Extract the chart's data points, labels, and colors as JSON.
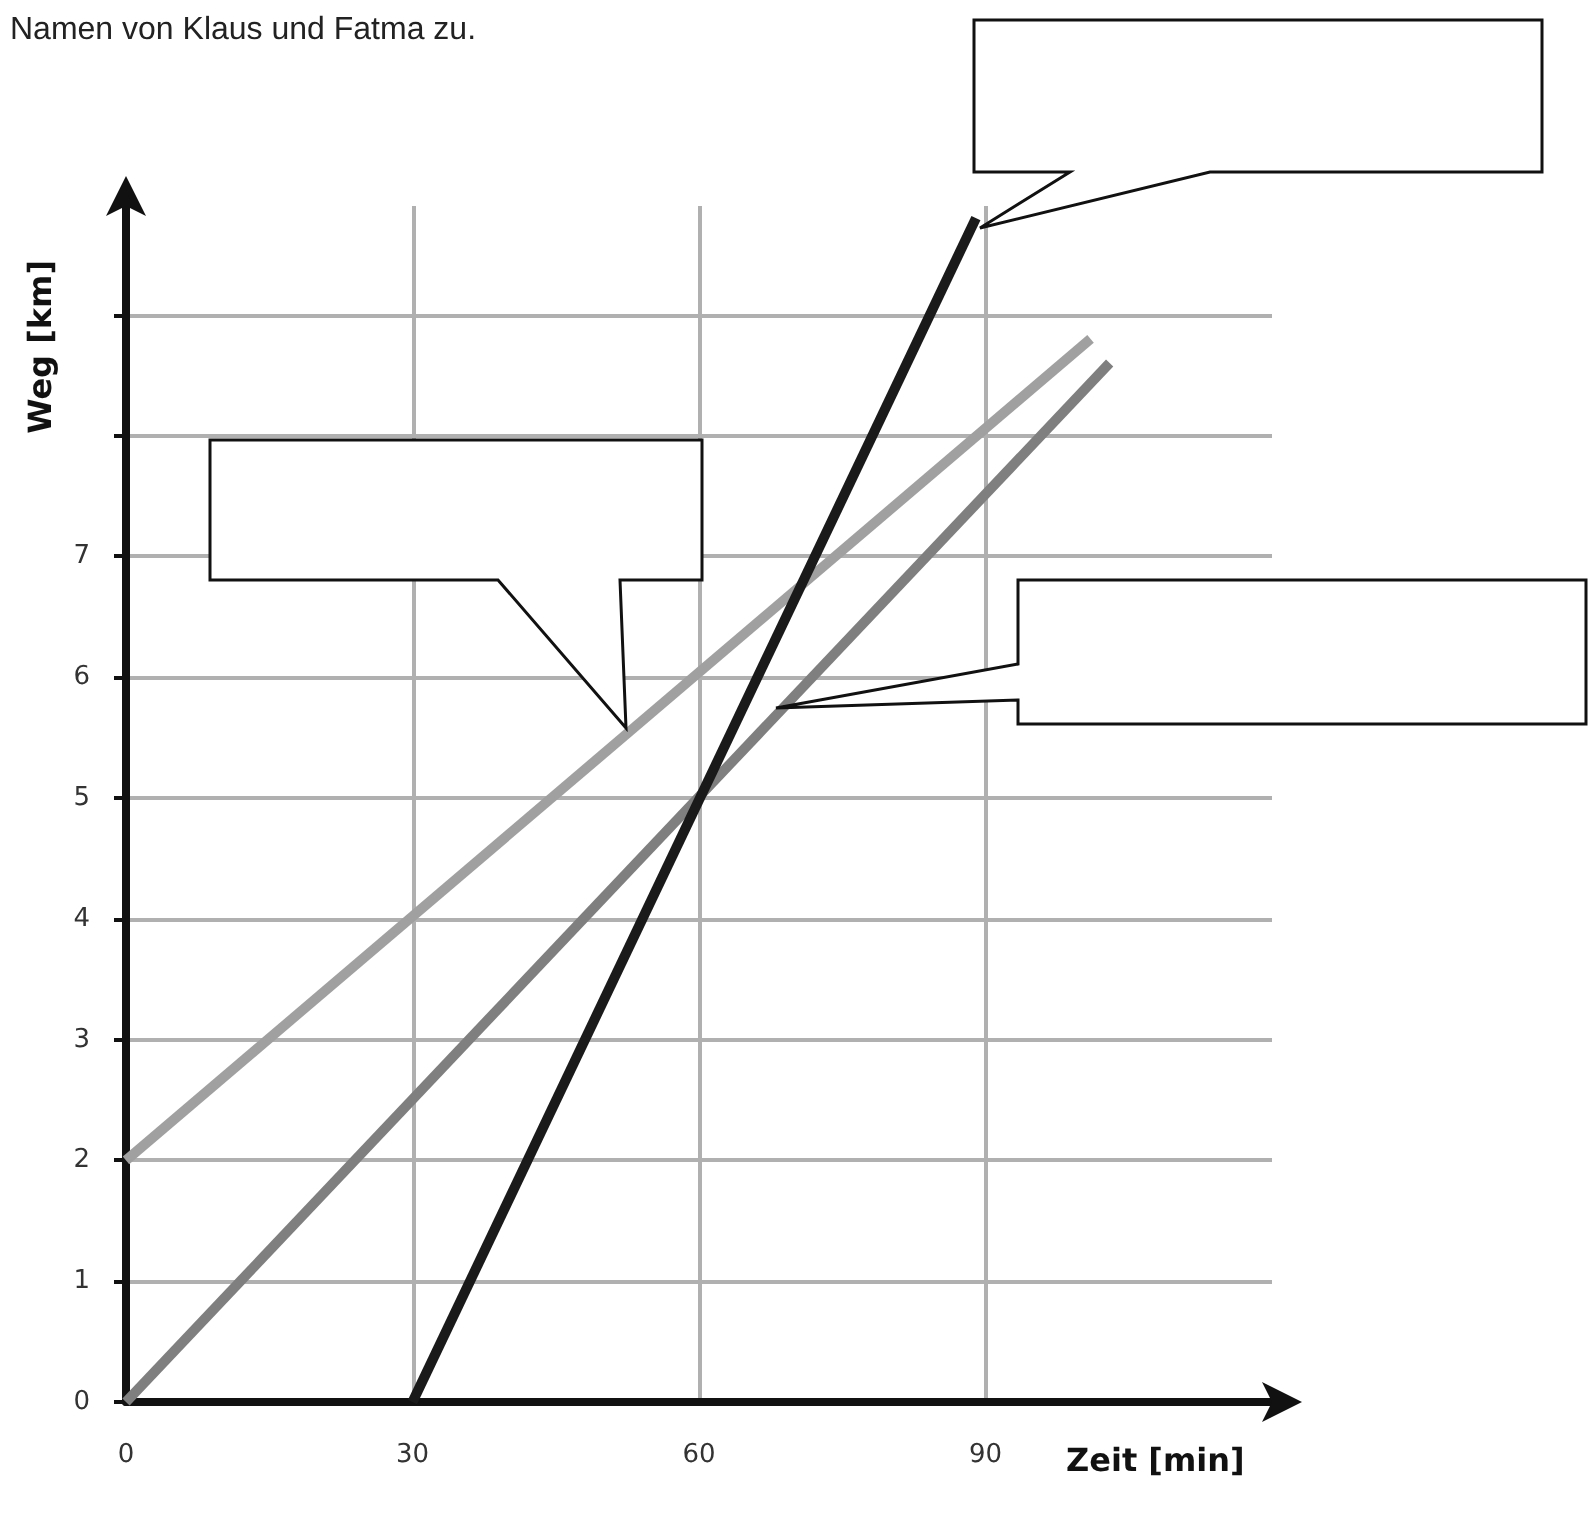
{
  "chart_data": {
    "type": "line",
    "title": "Namen von Klaus und Fatma zu.",
    "xlabel": "Zeit [min]",
    "ylabel": "Weg [km]",
    "xlim": [
      0,
      120
    ],
    "xticks": [
      0,
      30,
      60,
      90
    ],
    "ylim": [
      0,
      9.9
    ],
    "yticks": [
      0,
      1,
      2,
      3,
      4,
      5,
      6,
      7,
      {
        "value": 8,
        "label": null
      },
      {
        "value": 9,
        "label": null
      }
    ],
    "grid": true,
    "marker": "none",
    "line_style": "solid",
    "series": [
      {
        "color": "#a0a0a0",
        "x": [
          0,
          101
        ],
        "values": [
          2,
          8.8
        ]
      },
      {
        "color": "#7f7f7f",
        "x": [
          0,
          103
        ],
        "values": [
          0,
          8.6
        ]
      },
      {
        "color": "#1a1a1a",
        "x": [
          30,
          89
        ],
        "values": [
          0,
          9.8
        ]
      }
    ]
  }
}
